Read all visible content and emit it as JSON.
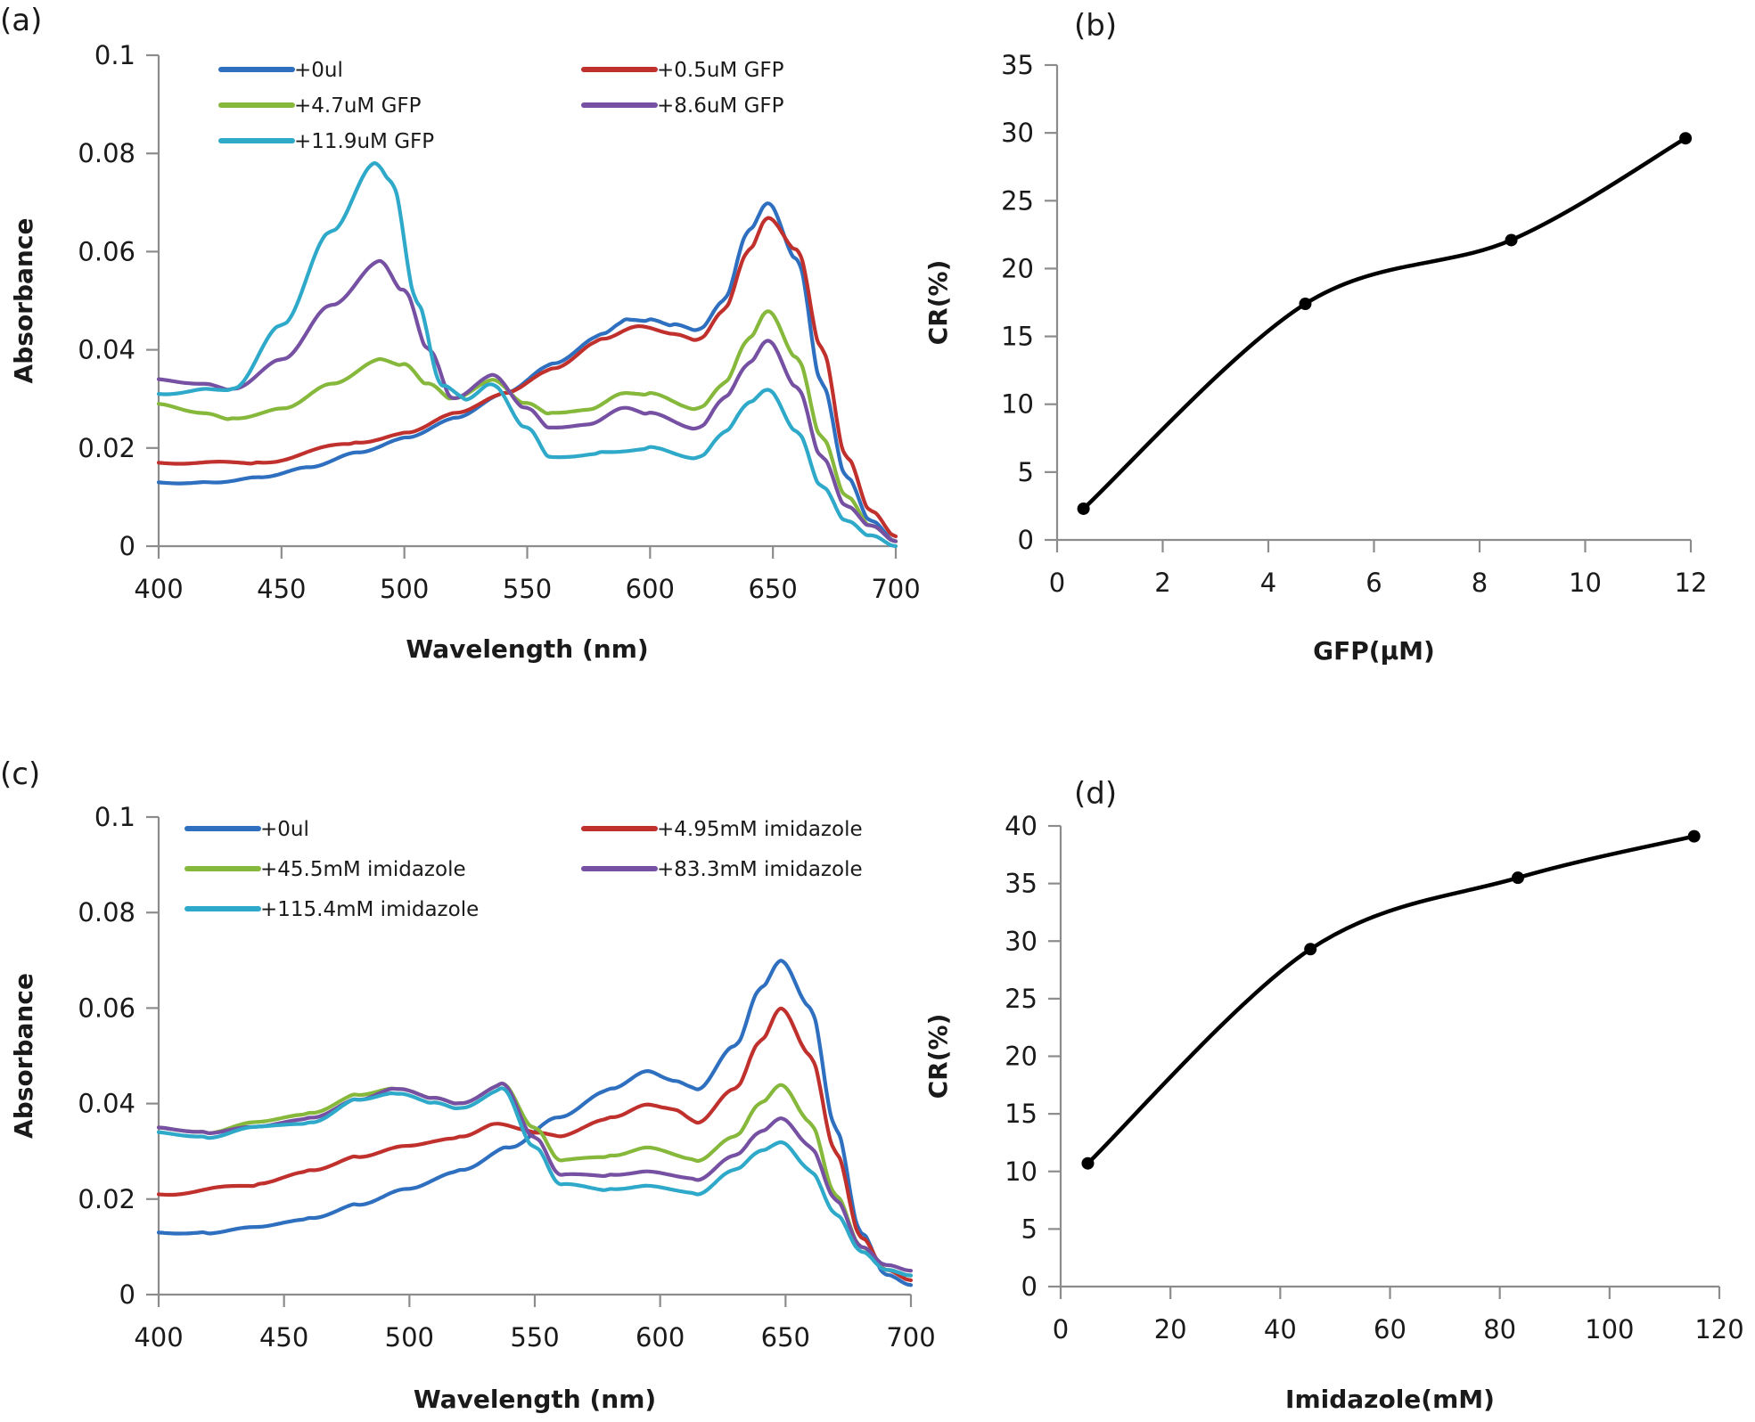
{
  "figure": {
    "panels": [
      "(a)",
      "(b)",
      "(c)",
      "(d)"
    ]
  },
  "chart_data": [
    {
      "id": "a",
      "panel_label": "(a)",
      "type": "line",
      "title": "",
      "xlabel": "Wavelength (nm)",
      "ylabel": "Absorbance",
      "xlim": [
        400,
        700
      ],
      "ylim": [
        0,
        0.1
      ],
      "xticks": [
        "400",
        "450",
        "500",
        "550",
        "600",
        "650",
        "700"
      ],
      "yticks": [
        "0",
        "0.02",
        "0.04",
        "0.06",
        "0.08",
        "0.1"
      ],
      "xtick_values": [
        400,
        450,
        500,
        550,
        600,
        650,
        700
      ],
      "ytick_values": [
        0,
        0.02,
        0.04,
        0.06,
        0.08,
        0.1
      ],
      "legend_position": "top",
      "grid": false,
      "series": [
        {
          "name": "+0ul",
          "color": "#2e6fbf",
          "x": [
            400,
            420,
            440,
            460,
            480,
            500,
            520,
            540,
            560,
            580,
            590,
            600,
            610,
            620,
            630,
            640,
            648,
            660,
            670,
            680,
            690,
            700
          ],
          "y": [
            0.013,
            0.013,
            0.014,
            0.016,
            0.019,
            0.022,
            0.026,
            0.031,
            0.037,
            0.043,
            0.046,
            0.046,
            0.045,
            0.044,
            0.05,
            0.064,
            0.07,
            0.058,
            0.033,
            0.014,
            0.005,
            0.001
          ]
        },
        {
          "name": "+0.5uM GFP",
          "color": "#c0312e",
          "x": [
            400,
            440,
            480,
            500,
            520,
            540,
            560,
            580,
            595,
            610,
            620,
            630,
            640,
            648,
            660,
            670,
            680,
            690,
            700
          ],
          "y": [
            0.017,
            0.017,
            0.021,
            0.023,
            0.027,
            0.031,
            0.036,
            0.042,
            0.045,
            0.043,
            0.042,
            0.048,
            0.06,
            0.067,
            0.06,
            0.04,
            0.018,
            0.007,
            0.002
          ]
        },
        {
          "name": "+4.7uM GFP",
          "color": "#86b83b",
          "x": [
            400,
            420,
            430,
            450,
            470,
            490,
            500,
            510,
            520,
            536,
            550,
            560,
            575,
            590,
            600,
            620,
            630,
            640,
            648,
            660,
            670,
            680,
            690,
            700
          ],
          "y": [
            0.029,
            0.027,
            0.026,
            0.028,
            0.033,
            0.038,
            0.037,
            0.033,
            0.03,
            0.034,
            0.029,
            0.027,
            0.028,
            0.031,
            0.031,
            0.028,
            0.033,
            0.042,
            0.048,
            0.038,
            0.022,
            0.01,
            0.004,
            0.001
          ]
        },
        {
          "name": "+8.6uM GFP",
          "color": "#7650a2",
          "x": [
            400,
            420,
            430,
            450,
            470,
            490,
            500,
            510,
            520,
            536,
            550,
            560,
            575,
            590,
            600,
            620,
            630,
            640,
            648,
            660,
            670,
            680,
            690,
            700
          ],
          "y": [
            0.034,
            0.033,
            0.032,
            0.038,
            0.049,
            0.058,
            0.052,
            0.04,
            0.03,
            0.035,
            0.028,
            0.024,
            0.025,
            0.028,
            0.027,
            0.024,
            0.03,
            0.037,
            0.042,
            0.032,
            0.018,
            0.008,
            0.004,
            0.001
          ]
        },
        {
          "name": "+11.9uM GFP",
          "color": "#2ea9c9",
          "x": [
            400,
            420,
            430,
            450,
            470,
            488,
            495,
            505,
            515,
            525,
            536,
            550,
            560,
            580,
            600,
            620,
            630,
            640,
            648,
            660,
            670,
            680,
            690,
            700
          ],
          "y": [
            0.031,
            0.032,
            0.032,
            0.045,
            0.064,
            0.078,
            0.074,
            0.05,
            0.033,
            0.03,
            0.033,
            0.024,
            0.018,
            0.019,
            0.02,
            0.018,
            0.023,
            0.029,
            0.032,
            0.023,
            0.012,
            0.005,
            0.002,
            0.0
          ]
        }
      ]
    },
    {
      "id": "b",
      "panel_label": "(b)",
      "type": "line",
      "title": "",
      "xlabel": "GFP(μM)",
      "ylabel": "CR(%)",
      "xlim": [
        0,
        12
      ],
      "ylim": [
        0,
        35
      ],
      "xticks": [
        "0",
        "2",
        "4",
        "6",
        "8",
        "10",
        "12"
      ],
      "yticks": [
        "0",
        "5",
        "10",
        "15",
        "20",
        "25",
        "30",
        "35"
      ],
      "xtick_values": [
        0,
        2,
        4,
        6,
        8,
        10,
        12
      ],
      "ytick_values": [
        0,
        5,
        10,
        15,
        20,
        25,
        30,
        35
      ],
      "grid": false,
      "series": [
        {
          "name": "CR",
          "color": "#000000",
          "smooth": true,
          "markers": true,
          "x": [
            0.5,
            4.7,
            8.6,
            11.9
          ],
          "y": [
            2.3,
            17.4,
            22.1,
            29.6
          ]
        }
      ]
    },
    {
      "id": "c",
      "panel_label": "(c)",
      "type": "line",
      "title": "",
      "xlabel": "Wavelength (nm)",
      "ylabel": "Absorbance",
      "xlim": [
        400,
        700
      ],
      "ylim": [
        0,
        0.1
      ],
      "xticks": [
        "400",
        "450",
        "500",
        "550",
        "600",
        "650",
        "700"
      ],
      "yticks": [
        "0",
        "0.02",
        "0.04",
        "0.06",
        "0.08",
        "0.1"
      ],
      "xtick_values": [
        400,
        450,
        500,
        550,
        600,
        650,
        700
      ],
      "ytick_values": [
        0,
        0.02,
        0.04,
        0.06,
        0.08,
        0.1
      ],
      "legend_position": "top",
      "grid": false,
      "series": [
        {
          "name": "+0ul",
          "color": "#2e6fbf",
          "x": [
            400,
            420,
            440,
            460,
            480,
            500,
            520,
            540,
            560,
            580,
            595,
            605,
            615,
            630,
            640,
            648,
            660,
            670,
            680,
            690,
            700
          ],
          "y": [
            0.013,
            0.013,
            0.014,
            0.016,
            0.019,
            0.022,
            0.026,
            0.031,
            0.037,
            0.043,
            0.047,
            0.045,
            0.043,
            0.052,
            0.064,
            0.07,
            0.06,
            0.035,
            0.013,
            0.004,
            0.002
          ]
        },
        {
          "name": "+4.95mM imidazole",
          "color": "#c0312e",
          "x": [
            400,
            440,
            460,
            480,
            500,
            520,
            535,
            550,
            560,
            580,
            595,
            605,
            615,
            630,
            640,
            648,
            660,
            670,
            680,
            690,
            700
          ],
          "y": [
            0.021,
            0.023,
            0.026,
            0.029,
            0.031,
            0.033,
            0.036,
            0.034,
            0.033,
            0.037,
            0.04,
            0.039,
            0.036,
            0.043,
            0.053,
            0.06,
            0.05,
            0.03,
            0.012,
            0.005,
            0.003
          ]
        },
        {
          "name": "+45.5mM imidazole",
          "color": "#86b83b",
          "x": [
            400,
            420,
            440,
            460,
            480,
            495,
            510,
            520,
            537,
            550,
            560,
            580,
            595,
            615,
            630,
            640,
            648,
            660,
            670,
            680,
            690,
            700
          ],
          "y": [
            0.035,
            0.034,
            0.036,
            0.038,
            0.042,
            0.043,
            0.041,
            0.04,
            0.044,
            0.035,
            0.028,
            0.029,
            0.031,
            0.028,
            0.033,
            0.04,
            0.044,
            0.036,
            0.021,
            0.01,
            0.005,
            0.004
          ]
        },
        {
          "name": "+83.3mM imidazole",
          "color": "#7650a2",
          "x": [
            400,
            420,
            440,
            460,
            480,
            495,
            510,
            520,
            537,
            550,
            560,
            580,
            595,
            615,
            630,
            640,
            648,
            660,
            670,
            680,
            690,
            700
          ],
          "y": [
            0.035,
            0.034,
            0.035,
            0.037,
            0.041,
            0.043,
            0.041,
            0.04,
            0.044,
            0.033,
            0.025,
            0.025,
            0.026,
            0.024,
            0.029,
            0.034,
            0.037,
            0.031,
            0.02,
            0.01,
            0.006,
            0.005
          ]
        },
        {
          "name": "+115.4mM imidazole",
          "color": "#2ea9c9",
          "x": [
            400,
            420,
            440,
            460,
            480,
            495,
            510,
            520,
            537,
            550,
            560,
            580,
            595,
            615,
            630,
            640,
            648,
            660,
            670,
            680,
            690,
            700
          ],
          "y": [
            0.034,
            0.033,
            0.035,
            0.036,
            0.041,
            0.042,
            0.04,
            0.039,
            0.043,
            0.031,
            0.023,
            0.022,
            0.023,
            0.021,
            0.026,
            0.03,
            0.032,
            0.026,
            0.017,
            0.009,
            0.005,
            0.004
          ]
        }
      ]
    },
    {
      "id": "d",
      "panel_label": "(d)",
      "type": "line",
      "title": "",
      "xlabel": "Imidazole(mM)",
      "ylabel": "CR(%)",
      "xlim": [
        0,
        120
      ],
      "ylim": [
        0,
        40
      ],
      "xticks": [
        "0",
        "20",
        "40",
        "60",
        "80",
        "100",
        "120"
      ],
      "yticks": [
        "0",
        "5",
        "10",
        "15",
        "20",
        "25",
        "30",
        "35",
        "40"
      ],
      "xtick_values": [
        0,
        20,
        40,
        60,
        80,
        100,
        120
      ],
      "ytick_values": [
        0,
        5,
        10,
        15,
        20,
        25,
        30,
        35,
        40
      ],
      "grid": false,
      "series": [
        {
          "name": "CR",
          "color": "#000000",
          "smooth": true,
          "markers": true,
          "x": [
            4.95,
            45.5,
            83.3,
            115.4
          ],
          "y": [
            10.7,
            29.3,
            35.5,
            39.1
          ]
        }
      ]
    }
  ]
}
